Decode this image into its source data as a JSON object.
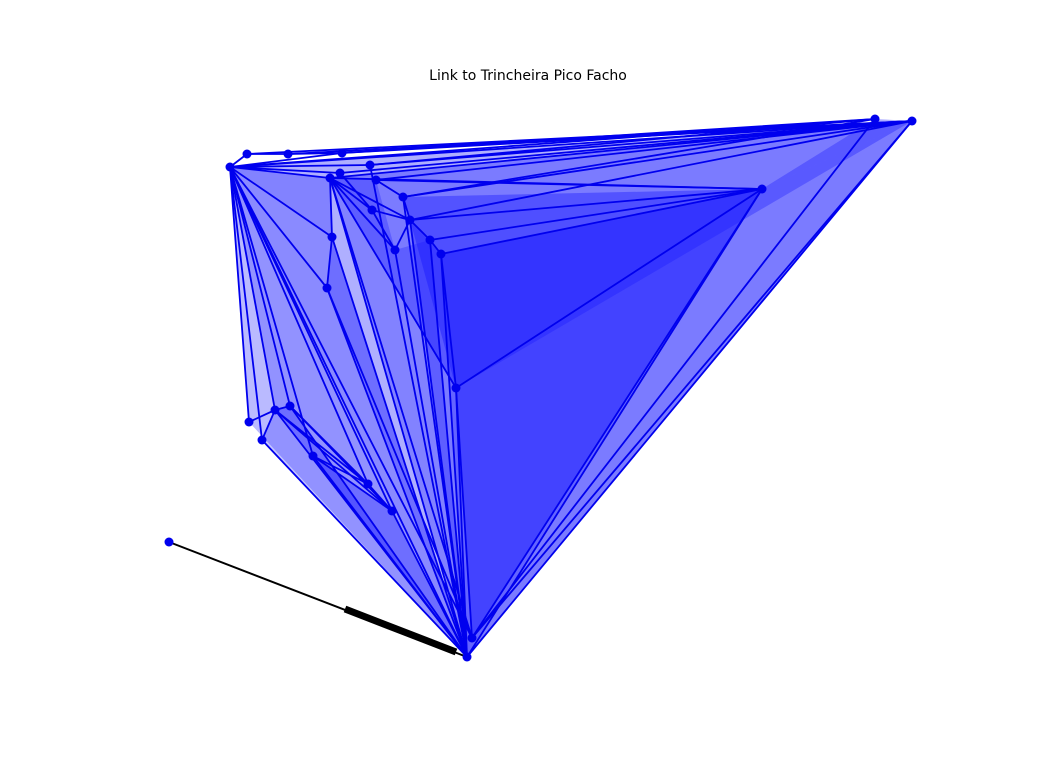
{
  "title": "Link to Trincheira Pico Facho",
  "colors": {
    "mesh": "#0000ee",
    "mesh_fill": "#1a1aff",
    "link": "#000000",
    "background": "#ffffff"
  },
  "icons": {
    "node": "filled-circle-marker"
  }
}
